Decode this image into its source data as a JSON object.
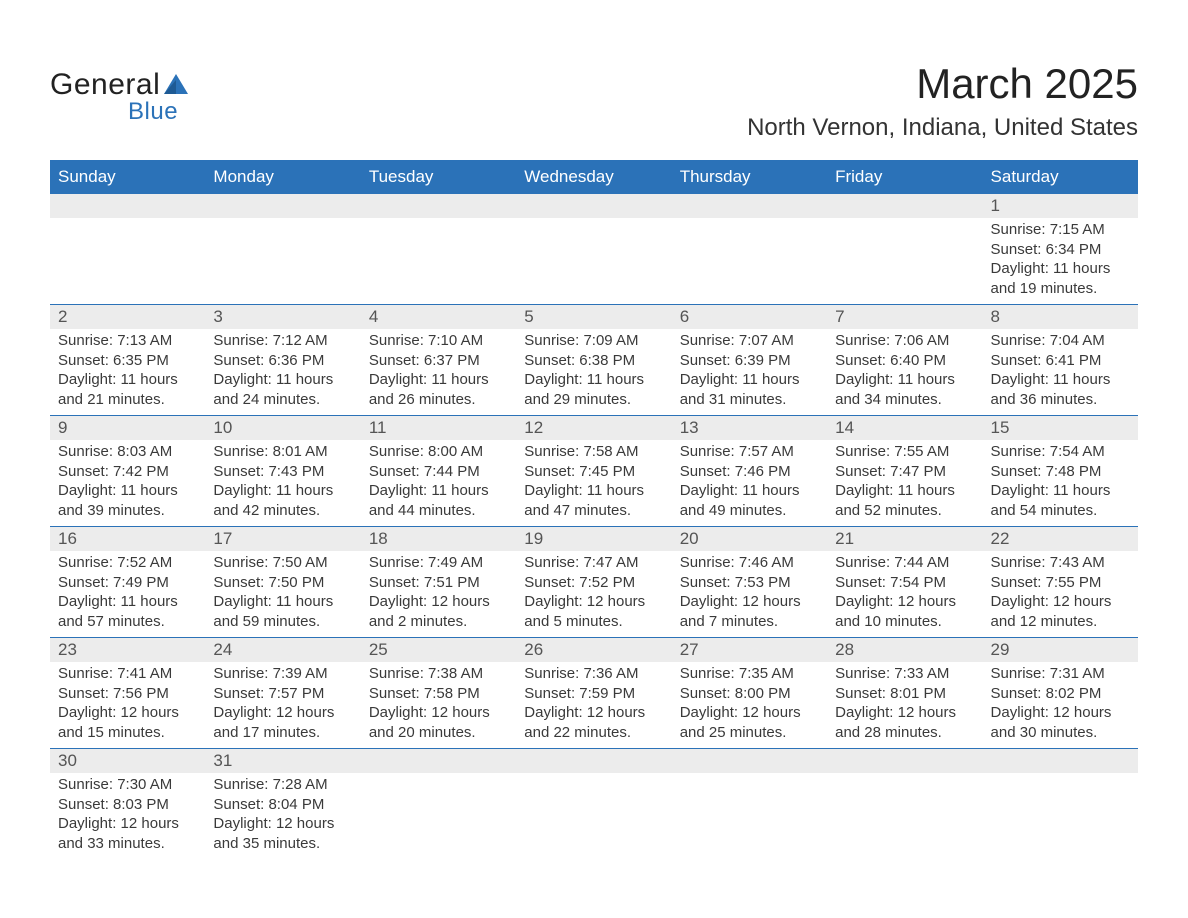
{
  "logo": {
    "general": "General",
    "blue": "Blue",
    "sail_color": "#2b72b8"
  },
  "header": {
    "month_title": "March 2025",
    "location": "North Vernon, Indiana, United States"
  },
  "colors": {
    "header_bg": "#2b72b8",
    "header_text": "#ffffff",
    "daynum_bg": "#ececec",
    "border": "#2b72b8",
    "text": "#3a3a3a"
  },
  "typography": {
    "title_fontsize": 42,
    "location_fontsize": 24,
    "weekday_fontsize": 17,
    "body_fontsize": 15
  },
  "weekdays": [
    "Sunday",
    "Monday",
    "Tuesday",
    "Wednesday",
    "Thursday",
    "Friday",
    "Saturday"
  ],
  "weeks": [
    [
      null,
      null,
      null,
      null,
      null,
      null,
      {
        "num": "1",
        "sunrise": "Sunrise: 7:15 AM",
        "sunset": "Sunset: 6:34 PM",
        "d1": "Daylight: 11 hours",
        "d2": "and 19 minutes."
      }
    ],
    [
      {
        "num": "2",
        "sunrise": "Sunrise: 7:13 AM",
        "sunset": "Sunset: 6:35 PM",
        "d1": "Daylight: 11 hours",
        "d2": "and 21 minutes."
      },
      {
        "num": "3",
        "sunrise": "Sunrise: 7:12 AM",
        "sunset": "Sunset: 6:36 PM",
        "d1": "Daylight: 11 hours",
        "d2": "and 24 minutes."
      },
      {
        "num": "4",
        "sunrise": "Sunrise: 7:10 AM",
        "sunset": "Sunset: 6:37 PM",
        "d1": "Daylight: 11 hours",
        "d2": "and 26 minutes."
      },
      {
        "num": "5",
        "sunrise": "Sunrise: 7:09 AM",
        "sunset": "Sunset: 6:38 PM",
        "d1": "Daylight: 11 hours",
        "d2": "and 29 minutes."
      },
      {
        "num": "6",
        "sunrise": "Sunrise: 7:07 AM",
        "sunset": "Sunset: 6:39 PM",
        "d1": "Daylight: 11 hours",
        "d2": "and 31 minutes."
      },
      {
        "num": "7",
        "sunrise": "Sunrise: 7:06 AM",
        "sunset": "Sunset: 6:40 PM",
        "d1": "Daylight: 11 hours",
        "d2": "and 34 minutes."
      },
      {
        "num": "8",
        "sunrise": "Sunrise: 7:04 AM",
        "sunset": "Sunset: 6:41 PM",
        "d1": "Daylight: 11 hours",
        "d2": "and 36 minutes."
      }
    ],
    [
      {
        "num": "9",
        "sunrise": "Sunrise: 8:03 AM",
        "sunset": "Sunset: 7:42 PM",
        "d1": "Daylight: 11 hours",
        "d2": "and 39 minutes."
      },
      {
        "num": "10",
        "sunrise": "Sunrise: 8:01 AM",
        "sunset": "Sunset: 7:43 PM",
        "d1": "Daylight: 11 hours",
        "d2": "and 42 minutes."
      },
      {
        "num": "11",
        "sunrise": "Sunrise: 8:00 AM",
        "sunset": "Sunset: 7:44 PM",
        "d1": "Daylight: 11 hours",
        "d2": "and 44 minutes."
      },
      {
        "num": "12",
        "sunrise": "Sunrise: 7:58 AM",
        "sunset": "Sunset: 7:45 PM",
        "d1": "Daylight: 11 hours",
        "d2": "and 47 minutes."
      },
      {
        "num": "13",
        "sunrise": "Sunrise: 7:57 AM",
        "sunset": "Sunset: 7:46 PM",
        "d1": "Daylight: 11 hours",
        "d2": "and 49 minutes."
      },
      {
        "num": "14",
        "sunrise": "Sunrise: 7:55 AM",
        "sunset": "Sunset: 7:47 PM",
        "d1": "Daylight: 11 hours",
        "d2": "and 52 minutes."
      },
      {
        "num": "15",
        "sunrise": "Sunrise: 7:54 AM",
        "sunset": "Sunset: 7:48 PM",
        "d1": "Daylight: 11 hours",
        "d2": "and 54 minutes."
      }
    ],
    [
      {
        "num": "16",
        "sunrise": "Sunrise: 7:52 AM",
        "sunset": "Sunset: 7:49 PM",
        "d1": "Daylight: 11 hours",
        "d2": "and 57 minutes."
      },
      {
        "num": "17",
        "sunrise": "Sunrise: 7:50 AM",
        "sunset": "Sunset: 7:50 PM",
        "d1": "Daylight: 11 hours",
        "d2": "and 59 minutes."
      },
      {
        "num": "18",
        "sunrise": "Sunrise: 7:49 AM",
        "sunset": "Sunset: 7:51 PM",
        "d1": "Daylight: 12 hours",
        "d2": "and 2 minutes."
      },
      {
        "num": "19",
        "sunrise": "Sunrise: 7:47 AM",
        "sunset": "Sunset: 7:52 PM",
        "d1": "Daylight: 12 hours",
        "d2": "and 5 minutes."
      },
      {
        "num": "20",
        "sunrise": "Sunrise: 7:46 AM",
        "sunset": "Sunset: 7:53 PM",
        "d1": "Daylight: 12 hours",
        "d2": "and 7 minutes."
      },
      {
        "num": "21",
        "sunrise": "Sunrise: 7:44 AM",
        "sunset": "Sunset: 7:54 PM",
        "d1": "Daylight: 12 hours",
        "d2": "and 10 minutes."
      },
      {
        "num": "22",
        "sunrise": "Sunrise: 7:43 AM",
        "sunset": "Sunset: 7:55 PM",
        "d1": "Daylight: 12 hours",
        "d2": "and 12 minutes."
      }
    ],
    [
      {
        "num": "23",
        "sunrise": "Sunrise: 7:41 AM",
        "sunset": "Sunset: 7:56 PM",
        "d1": "Daylight: 12 hours",
        "d2": "and 15 minutes."
      },
      {
        "num": "24",
        "sunrise": "Sunrise: 7:39 AM",
        "sunset": "Sunset: 7:57 PM",
        "d1": "Daylight: 12 hours",
        "d2": "and 17 minutes."
      },
      {
        "num": "25",
        "sunrise": "Sunrise: 7:38 AM",
        "sunset": "Sunset: 7:58 PM",
        "d1": "Daylight: 12 hours",
        "d2": "and 20 minutes."
      },
      {
        "num": "26",
        "sunrise": "Sunrise: 7:36 AM",
        "sunset": "Sunset: 7:59 PM",
        "d1": "Daylight: 12 hours",
        "d2": "and 22 minutes."
      },
      {
        "num": "27",
        "sunrise": "Sunrise: 7:35 AM",
        "sunset": "Sunset: 8:00 PM",
        "d1": "Daylight: 12 hours",
        "d2": "and 25 minutes."
      },
      {
        "num": "28",
        "sunrise": "Sunrise: 7:33 AM",
        "sunset": "Sunset: 8:01 PM",
        "d1": "Daylight: 12 hours",
        "d2": "and 28 minutes."
      },
      {
        "num": "29",
        "sunrise": "Sunrise: 7:31 AM",
        "sunset": "Sunset: 8:02 PM",
        "d1": "Daylight: 12 hours",
        "d2": "and 30 minutes."
      }
    ],
    [
      {
        "num": "30",
        "sunrise": "Sunrise: 7:30 AM",
        "sunset": "Sunset: 8:03 PM",
        "d1": "Daylight: 12 hours",
        "d2": "and 33 minutes."
      },
      {
        "num": "31",
        "sunrise": "Sunrise: 7:28 AM",
        "sunset": "Sunset: 8:04 PM",
        "d1": "Daylight: 12 hours",
        "d2": "and 35 minutes."
      },
      null,
      null,
      null,
      null,
      null
    ]
  ]
}
